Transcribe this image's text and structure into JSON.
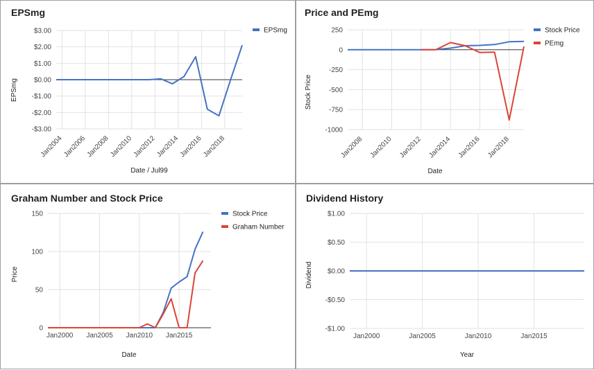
{
  "chart_data": [
    {
      "type": "line",
      "title": "EPSmg",
      "xlabel": "Date / Jul99",
      "ylabel": "EPSmg",
      "x_ticks": [
        "Jan2004",
        "Jan2006",
        "Jan2008",
        "Jan2010",
        "Jan2012",
        "Jan2014",
        "Jan2016",
        "Jan2018"
      ],
      "y_ticks": [
        "$3.00",
        "$2.00",
        "$1.00",
        "$0.00",
        "-$1.00",
        "-$2.00",
        "-$3.00"
      ],
      "xlim": [
        2003.5,
        2019.5
      ],
      "ylim": [
        -3,
        3
      ],
      "legend": "top-right",
      "series": [
        {
          "name": "EPSmg",
          "color": "#4472c4",
          "x": [
            2003.5,
            2004.5,
            2005.5,
            2006.5,
            2007.5,
            2008.5,
            2009.5,
            2010.5,
            2011.5,
            2012.5,
            2013.5,
            2014.5,
            2015.5,
            2016.5,
            2017.5,
            2018.5,
            2019.5
          ],
          "y": [
            0,
            0,
            0,
            0,
            0,
            0,
            0,
            0,
            0,
            0.05,
            -0.25,
            0.2,
            1.4,
            -1.8,
            -2.2,
            0,
            2.1
          ]
        }
      ]
    },
    {
      "type": "line",
      "title": "Price and PEmg",
      "xlabel": "Date",
      "ylabel": "Stock Price",
      "x_ticks": [
        "Jan2008",
        "Jan2010",
        "Jan2012",
        "Jan2014",
        "Jan2016",
        "Jan2018"
      ],
      "y_ticks": [
        "250",
        "0",
        "-250",
        "-500",
        "-750",
        "-1000"
      ],
      "xlim": [
        2007,
        2019
      ],
      "ylim": [
        -1000,
        250
      ],
      "legend": "top-right",
      "series": [
        {
          "name": "Stock Price",
          "color": "#4472c4",
          "x": [
            2007,
            2008,
            2009,
            2010,
            2011,
            2012,
            2013,
            2014,
            2015,
            2016,
            2017,
            2018,
            2019
          ],
          "y": [
            0,
            0,
            0,
            0,
            0,
            0,
            2,
            20,
            50,
            55,
            65,
            100,
            105
          ]
        },
        {
          "name": "PEmg",
          "color": "#db4437",
          "x": [
            2012,
            2013,
            2014,
            2015,
            2016,
            2017,
            2018,
            2019
          ],
          "y": [
            0,
            0,
            90,
            50,
            -35,
            -30,
            -880,
            40
          ]
        }
      ]
    },
    {
      "type": "line",
      "title": "Graham Number and Stock Price",
      "xlabel": "Date",
      "ylabel": "Price",
      "x_ticks": [
        "Jan2000",
        "Jan2005",
        "Jan2010",
        "Jan2015"
      ],
      "y_ticks": [
        "150",
        "100",
        "50",
        "0"
      ],
      "xlim": [
        1998.5,
        2019
      ],
      "ylim": [
        0,
        150
      ],
      "legend": "top-right",
      "series": [
        {
          "name": "Stock Price",
          "color": "#4472c4",
          "x": [
            1998.5,
            2010,
            2011,
            2012,
            2013,
            2014,
            2015,
            2016,
            2017,
            2018
          ],
          "y": [
            0,
            0,
            0,
            0,
            20,
            52,
            60,
            67,
            103,
            126
          ]
        },
        {
          "name": "Graham Number",
          "color": "#db4437",
          "x": [
            1998.5,
            2010,
            2011,
            2012,
            2013,
            2014,
            2015,
            2016,
            2017,
            2018
          ],
          "y": [
            0,
            0,
            5,
            0,
            18,
            38,
            0,
            0,
            72,
            88
          ]
        }
      ]
    },
    {
      "type": "line",
      "title": "Dividend History",
      "xlabel": "Year",
      "ylabel": "Dividend",
      "x_ticks": [
        "Jan2000",
        "Jan2005",
        "Jan2010",
        "Jan2015"
      ],
      "y_ticks": [
        "$1.00",
        "$0.50",
        "$0.00",
        "-$0.50",
        "-$1.00"
      ],
      "xlim": [
        1998.5,
        2019.5
      ],
      "ylim": [
        -1,
        1
      ],
      "legend": "none",
      "series": [
        {
          "name": "",
          "color": "#4472c4",
          "x": [
            1998.5,
            2019.5
          ],
          "y": [
            0,
            0
          ]
        }
      ]
    }
  ]
}
